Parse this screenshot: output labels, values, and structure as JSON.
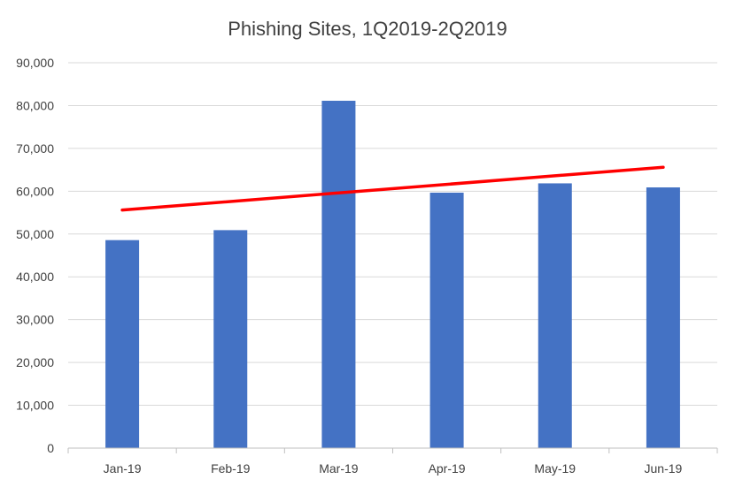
{
  "chart_data": {
    "type": "bar",
    "title": "Phishing Sites, 1Q2019-2Q2019",
    "categories": [
      "Jan-19",
      "Feb-19",
      "Mar-19",
      "Apr-19",
      "May-19",
      "Jun-19"
    ],
    "values": [
      48577,
      50906,
      81122,
      59662,
      61836,
      60889
    ],
    "ylim": [
      0,
      90000
    ],
    "yticks": [
      "0",
      "10,000",
      "20,000",
      "30,000",
      "40,000",
      "50,000",
      "60,000",
      "70,000",
      "80,000",
      "90,000"
    ],
    "ytick_values": [
      0,
      10000,
      20000,
      30000,
      40000,
      50000,
      60000,
      70000,
      80000,
      90000
    ],
    "grid": true,
    "legend": "none",
    "trendline": {
      "type": "linear",
      "start": 55600,
      "end": 65600
    },
    "colors": {
      "bar": "#4472c4",
      "trendline": "#ff0000"
    }
  }
}
